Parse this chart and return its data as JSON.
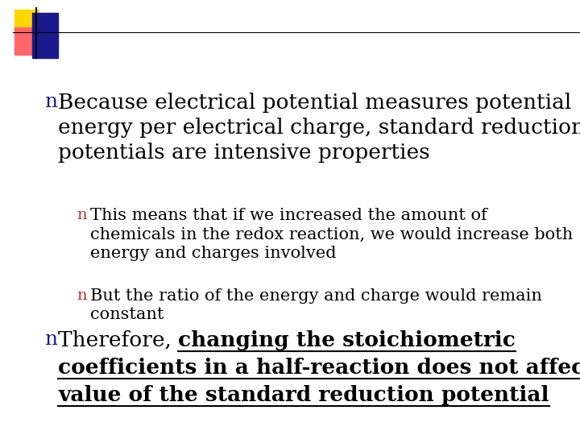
{
  "background_color": "#ffffff",
  "logo_colors": {
    "yellow": "#FFD700",
    "red": "#FF6666",
    "blue": "#1a1a8c"
  },
  "bullet1_color": "#1a1a8c",
  "bullet2_color": "#CC2222",
  "text_color": "#000000",
  "title_text": "Because electrical potential measures potential\nenergy per electrical charge, standard reduction\npotentials are intensive properties",
  "sub1_text": "This means that if we increased the amount of\nchemicals in the redox reaction, we would increase both\nenergy and charges involved",
  "sub2_text": "But the ratio of the energy and charge would remain\nconstant",
  "sub3_prefix": "Therefore, ",
  "sub3_bold": "changing the stoichiometric\ncoefficients in a half-reaction does not affect the\nvalue of the standard reduction potential",
  "font_family": "serif",
  "title_fontsize": 19,
  "sub_fontsize": 15,
  "fig_width": 7.2,
  "fig_height": 5.4
}
